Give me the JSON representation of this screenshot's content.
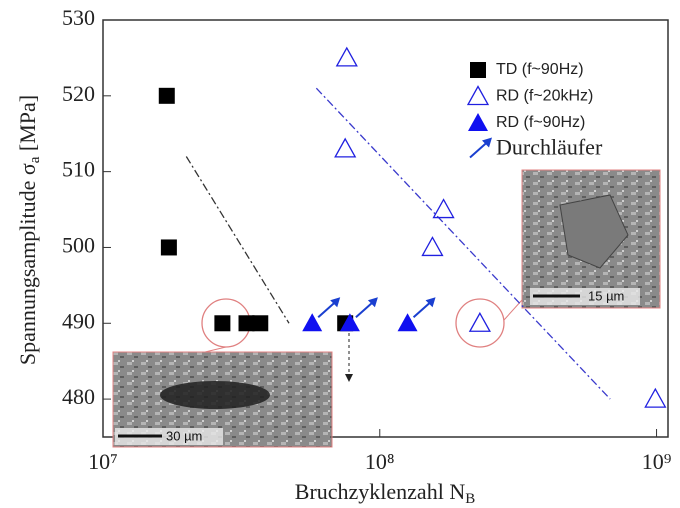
{
  "chart_data": {
    "type": "scatter",
    "x_label": {
      "text": "Bruchzyklenzahl N",
      "subscript": "B"
    },
    "y_label": {
      "text": "Spannungsamplitude σ",
      "subscript": "a",
      "suffix": " [MPa]"
    },
    "x_scale": "log",
    "xlim": [
      10000000,
      1100000000
    ],
    "ylim": [
      475,
      530
    ],
    "xticks": [
      {
        "value": 10000000,
        "label": "10⁷"
      },
      {
        "value": 100000000,
        "label": "10⁸"
      },
      {
        "value": 1000000000,
        "label": "10⁹"
      }
    ],
    "yticks": [
      480,
      490,
      500,
      510,
      520,
      530
    ],
    "series": [
      {
        "name": "TD (f~90Hz)",
        "color": "#000000",
        "marker": "square",
        "x": [
          17000000,
          17300000,
          27000000,
          33000000,
          37000000,
          75000000
        ],
        "values": [
          520,
          500,
          490,
          490,
          490,
          490
        ]
      },
      {
        "name": "RD (f~20kHz)",
        "color": "#2020e0",
        "marker": "triangle-open",
        "x": [
          76000000,
          75000000,
          170000000,
          155000000,
          230000000,
          990000000
        ],
        "values": [
          525,
          513,
          505,
          500,
          490,
          480
        ]
      },
      {
        "name": "RD (f~90Hz)",
        "color": "#1010f0",
        "marker": "triangle",
        "runout": true,
        "x": [
          57000000,
          78000000,
          126000000
        ],
        "values": [
          490,
          490,
          490
        ]
      }
    ],
    "runout_label": "Durchläufer",
    "runout_color": "#1a3fd0",
    "trend_lines": [
      {
        "color": "#333333",
        "x": [
          20000000,
          47000000
        ],
        "values": [
          512,
          490
        ]
      },
      {
        "color": "#3a3acc",
        "x": [
          59000000,
          680000000
        ],
        "values": [
          521,
          480
        ]
      }
    ],
    "insets": [
      {
        "scale_label": "30 µm"
      },
      {
        "scale_label": "15 µm"
      }
    ]
  }
}
